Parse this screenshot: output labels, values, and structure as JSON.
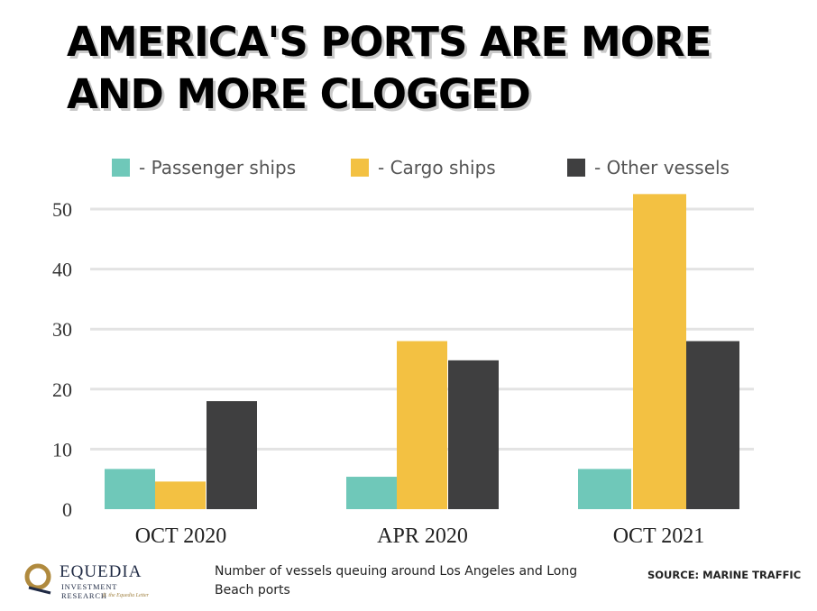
{
  "title_lines": [
    "AMERICA'S PORTS ARE MORE",
    "AND MORE CLOGGED"
  ],
  "colors": {
    "passenger": "#6fc8b9",
    "cargo": "#f3c142",
    "other": "#3f3f40",
    "grid": "#e3e3e3"
  },
  "chart_data": {
    "type": "bar",
    "title": "AMERICA'S PORTS ARE MORE AND MORE CLOGGED",
    "categories": [
      "OCT 2020",
      "APR 2020",
      "OCT 2021"
    ],
    "series": [
      {
        "name": "- Passenger ships",
        "values": [
          6.7,
          5.4,
          6.7
        ],
        "color": "#6fc8b9"
      },
      {
        "name": "- Cargo ships",
        "values": [
          4.6,
          28,
          52.5
        ],
        "color": "#f3c142"
      },
      {
        "name": "- Other vessels",
        "values": [
          18,
          24.8,
          28
        ],
        "color": "#3f3f40"
      }
    ],
    "yticks": [
      0,
      10,
      20,
      30,
      40,
      50
    ],
    "ylim": [
      0,
      53
    ],
    "grid": true,
    "legend_position": "top"
  },
  "caption": "Number of vessels queuing around Los Angeles and Long Beach ports",
  "source": "SOURCE:  MARINE TRAFFIC",
  "logo": {
    "name": "EQUEDIA",
    "sub": "INVESTMENT RESEARCH",
    "tag": "ft. the Equedia Letter"
  }
}
